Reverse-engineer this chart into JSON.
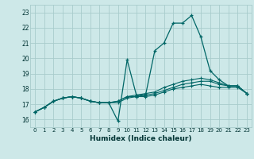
{
  "title": "",
  "xlabel": "Humidex (Indice chaleur)",
  "ylabel": "",
  "bg_color": "#cde8e8",
  "grid_color": "#a8cccc",
  "line_color": "#006666",
  "xlim": [
    -0.5,
    23.5
  ],
  "ylim": [
    15.5,
    23.5
  ],
  "xticks": [
    0,
    1,
    2,
    3,
    4,
    5,
    6,
    7,
    8,
    9,
    10,
    11,
    12,
    13,
    14,
    15,
    16,
    17,
    18,
    19,
    20,
    21,
    22,
    23
  ],
  "yticks": [
    16,
    17,
    18,
    19,
    20,
    21,
    22,
    23
  ],
  "series": [
    {
      "x": [
        0,
        1,
        2,
        3,
        4,
        5,
        6,
        7,
        8,
        9,
        10,
        11,
        12,
        13,
        14,
        15,
        16,
        17,
        18,
        19,
        20,
        21,
        22,
        23
      ],
      "y": [
        16.5,
        16.8,
        17.2,
        17.4,
        17.5,
        17.4,
        17.2,
        17.1,
        17.1,
        15.9,
        19.9,
        17.6,
        17.6,
        20.5,
        21.0,
        22.3,
        22.3,
        22.8,
        21.4,
        19.2,
        18.6,
        18.2,
        18.2,
        17.7
      ]
    },
    {
      "x": [
        0,
        1,
        2,
        3,
        4,
        5,
        6,
        7,
        8,
        9,
        10,
        11,
        12,
        13,
        14,
        15,
        16,
        17,
        18,
        19,
        20,
        21,
        22,
        23
      ],
      "y": [
        16.5,
        16.8,
        17.2,
        17.4,
        17.5,
        17.4,
        17.2,
        17.1,
        17.1,
        17.2,
        17.5,
        17.6,
        17.7,
        17.8,
        18.1,
        18.3,
        18.5,
        18.6,
        18.7,
        18.6,
        18.4,
        18.2,
        18.2,
        17.7
      ]
    },
    {
      "x": [
        0,
        1,
        2,
        3,
        4,
        5,
        6,
        7,
        8,
        9,
        10,
        11,
        12,
        13,
        14,
        15,
        16,
        17,
        18,
        19,
        20,
        21,
        22,
        23
      ],
      "y": [
        16.5,
        16.8,
        17.2,
        17.4,
        17.5,
        17.4,
        17.2,
        17.1,
        17.1,
        17.2,
        17.5,
        17.5,
        17.6,
        17.7,
        17.9,
        18.1,
        18.3,
        18.4,
        18.5,
        18.5,
        18.3,
        18.2,
        18.2,
        17.7
      ]
    },
    {
      "x": [
        0,
        1,
        2,
        3,
        4,
        5,
        6,
        7,
        8,
        9,
        10,
        11,
        12,
        13,
        14,
        15,
        16,
        17,
        18,
        19,
        20,
        21,
        22,
        23
      ],
      "y": [
        16.5,
        16.8,
        17.2,
        17.4,
        17.5,
        17.4,
        17.2,
        17.1,
        17.1,
        17.1,
        17.4,
        17.5,
        17.5,
        17.6,
        17.8,
        18.0,
        18.1,
        18.2,
        18.3,
        18.2,
        18.1,
        18.1,
        18.1,
        17.7
      ]
    }
  ]
}
